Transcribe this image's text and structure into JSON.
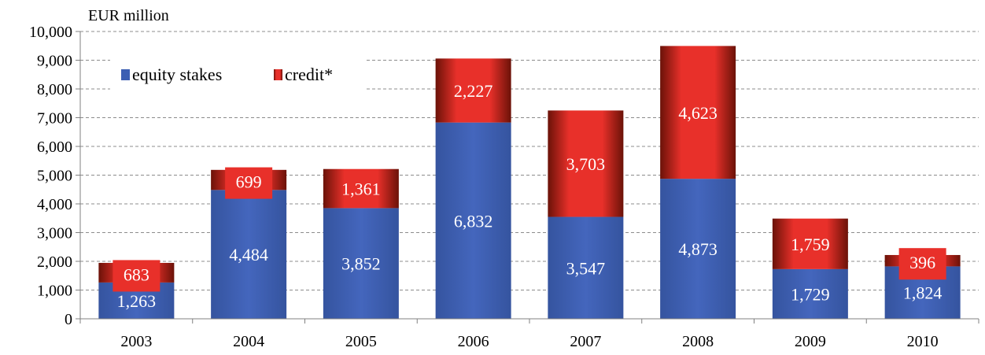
{
  "chart_data": {
    "type": "bar",
    "stacked": true,
    "unit_label": "EUR million",
    "categories": [
      "2003",
      "2004",
      "2005",
      "2006",
      "2007",
      "2008",
      "2009",
      "2010"
    ],
    "series": [
      {
        "name": "equity stakes",
        "values": [
          1263,
          4484,
          3852,
          6832,
          3547,
          4873,
          1729,
          1824
        ]
      },
      {
        "name": "credit*",
        "values": [
          683,
          699,
          1361,
          2227,
          3703,
          4623,
          1759,
          396
        ]
      }
    ],
    "value_labels": {
      "equity stakes": [
        "1,263",
        "4,484",
        "3,852",
        "6,832",
        "3,547",
        "4,873",
        "1,729",
        "1,824"
      ],
      "credit*": [
        "683",
        "699",
        "1,361",
        "2,227",
        "3,703",
        "4,623",
        "1,759",
        "396"
      ]
    },
    "ylim": [
      0,
      10000
    ],
    "yticks": [
      0,
      1000,
      2000,
      3000,
      4000,
      5000,
      6000,
      7000,
      8000,
      9000,
      10000
    ],
    "ytick_labels": [
      "0",
      "1,000",
      "2,000",
      "3,000",
      "4,000",
      "5,000",
      "6,000",
      "7,000",
      "8,000",
      "9,000",
      "10,000"
    ],
    "grid": true,
    "legend_position": "top-left",
    "colors": {
      "equity stakes": "#3c5fb3",
      "credit*": "#e8302a",
      "credit_dark": "#6b1208"
    }
  }
}
